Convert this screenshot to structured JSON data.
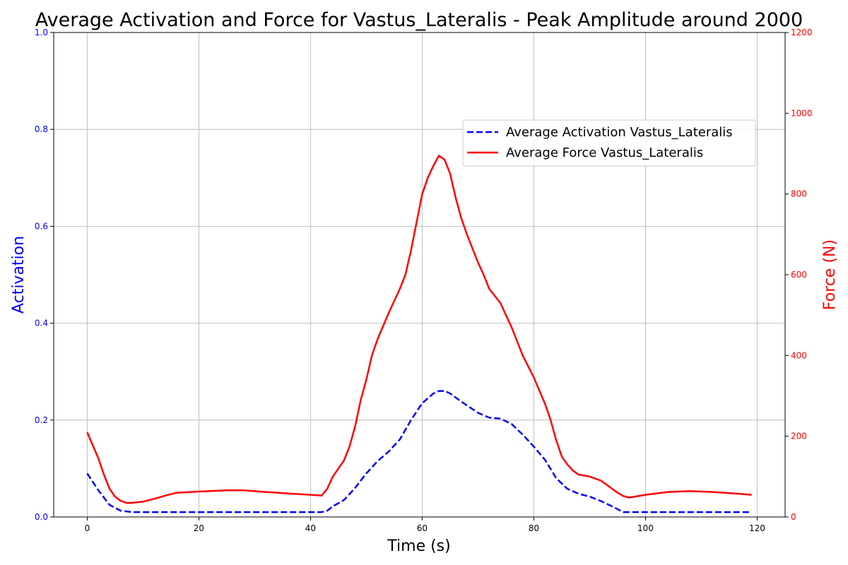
{
  "chart_data": {
    "type": "line",
    "title": "Average Activation and Force for Vastus_Lateralis - Peak Amplitude around 2000",
    "xlabel": "Time (s)",
    "ylabel_left": "Activation",
    "ylabel_right": "Force (N)",
    "xlim": [
      -6,
      125
    ],
    "ylim_left": [
      0,
      1.0
    ],
    "ylim_right": [
      0,
      1200
    ],
    "x_ticks": [
      0,
      20,
      40,
      60,
      80,
      100,
      120
    ],
    "y_left_ticks": [
      0.0,
      0.2,
      0.4,
      0.6,
      0.8,
      1.0
    ],
    "y_right_ticks": [
      0,
      200,
      400,
      600,
      800,
      1000,
      1200
    ],
    "grid": true,
    "legend_position": "upper right",
    "colors": {
      "activation": "#0000ff",
      "force": "#ff0000",
      "grid": "#b0b0b0"
    },
    "series": [
      {
        "name": "Average Activation Vastus_Lateralis",
        "axis": "left",
        "style": "dashed",
        "points": [
          [
            0,
            0.09
          ],
          [
            2,
            0.055
          ],
          [
            4,
            0.025
          ],
          [
            6,
            0.013
          ],
          [
            8,
            0.01
          ],
          [
            20,
            0.01
          ],
          [
            42,
            0.01
          ],
          [
            43,
            0.013
          ],
          [
            44,
            0.022
          ],
          [
            46,
            0.035
          ],
          [
            48,
            0.06
          ],
          [
            50,
            0.09
          ],
          [
            52,
            0.115
          ],
          [
            54,
            0.135
          ],
          [
            56,
            0.16
          ],
          [
            58,
            0.2
          ],
          [
            60,
            0.235
          ],
          [
            62,
            0.255
          ],
          [
            63,
            0.26
          ],
          [
            64,
            0.26
          ],
          [
            65,
            0.255
          ],
          [
            67,
            0.238
          ],
          [
            70,
            0.215
          ],
          [
            72,
            0.205
          ],
          [
            74,
            0.203
          ],
          [
            76,
            0.192
          ],
          [
            78,
            0.17
          ],
          [
            80,
            0.145
          ],
          [
            82,
            0.118
          ],
          [
            84,
            0.08
          ],
          [
            86,
            0.058
          ],
          [
            88,
            0.048
          ],
          [
            90,
            0.042
          ],
          [
            92,
            0.033
          ],
          [
            94,
            0.022
          ],
          [
            96,
            0.01
          ],
          [
            100,
            0.01
          ],
          [
            119,
            0.01
          ]
        ]
      },
      {
        "name": "Average Force Vastus_Lateralis",
        "axis": "right",
        "style": "solid",
        "points": [
          [
            0,
            210
          ],
          [
            2,
            145
          ],
          [
            3,
            105
          ],
          [
            4,
            70
          ],
          [
            5,
            50
          ],
          [
            6,
            40
          ],
          [
            7,
            35
          ],
          [
            8,
            35
          ],
          [
            10,
            38
          ],
          [
            12,
            45
          ],
          [
            14,
            53
          ],
          [
            16,
            60
          ],
          [
            20,
            63
          ],
          [
            25,
            66
          ],
          [
            28,
            66
          ],
          [
            32,
            62
          ],
          [
            36,
            58
          ],
          [
            40,
            55
          ],
          [
            42,
            53
          ],
          [
            43,
            70
          ],
          [
            44,
            100
          ],
          [
            46,
            140
          ],
          [
            47,
            175
          ],
          [
            48,
            225
          ],
          [
            49,
            290
          ],
          [
            50,
            340
          ],
          [
            51,
            400
          ],
          [
            52,
            440
          ],
          [
            54,
            505
          ],
          [
            56,
            565
          ],
          [
            57,
            600
          ],
          [
            58,
            660
          ],
          [
            59,
            730
          ],
          [
            60,
            800
          ],
          [
            61,
            840
          ],
          [
            62,
            870
          ],
          [
            63,
            895
          ],
          [
            64,
            885
          ],
          [
            65,
            850
          ],
          [
            66,
            790
          ],
          [
            67,
            740
          ],
          [
            68,
            700
          ],
          [
            70,
            630
          ],
          [
            71,
            600
          ],
          [
            72,
            565
          ],
          [
            74,
            530
          ],
          [
            76,
            470
          ],
          [
            78,
            400
          ],
          [
            80,
            345
          ],
          [
            82,
            280
          ],
          [
            83,
            240
          ],
          [
            84,
            190
          ],
          [
            85,
            150
          ],
          [
            86,
            130
          ],
          [
            87,
            115
          ],
          [
            88,
            105
          ],
          [
            90,
            100
          ],
          [
            92,
            90
          ],
          [
            93,
            80
          ],
          [
            94,
            70
          ],
          [
            95,
            60
          ],
          [
            96,
            52
          ],
          [
            97,
            48
          ],
          [
            100,
            55
          ],
          [
            104,
            62
          ],
          [
            108,
            64
          ],
          [
            112,
            62
          ],
          [
            116,
            58
          ],
          [
            119,
            55
          ]
        ]
      }
    ]
  }
}
